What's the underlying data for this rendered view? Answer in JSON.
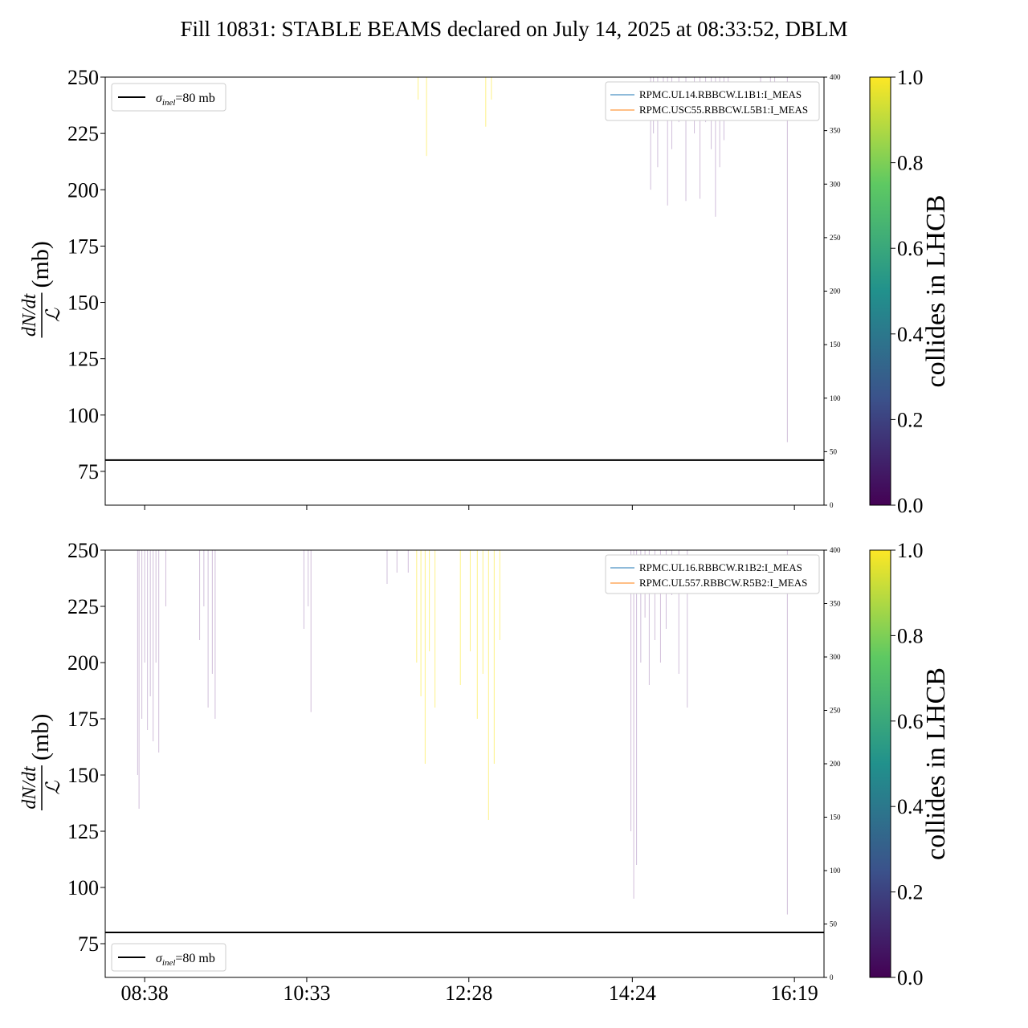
{
  "figure": {
    "title": "Fill 10831: STABLE BEAMS declared on July 14, 2025 at 08:33:52, DBLM"
  },
  "chart_data": [
    {
      "type": "line",
      "panel": "top",
      "ylabel_num": "dN/dt",
      "ylabel_den": "ℒ",
      "ylabel_unit": "(mb)",
      "ylim": [
        60,
        250
      ],
      "yticks": [
        75,
        100,
        125,
        150,
        175,
        200,
        225,
        250
      ],
      "y2lim": [
        0,
        400
      ],
      "y2ticks": [
        0,
        50,
        100,
        150,
        200,
        250,
        300,
        350,
        400
      ],
      "xticks": [
        "08:38",
        "10:33",
        "12:28",
        "14:24",
        "16:19"
      ],
      "xtick_minutes": [
        518,
        633,
        748,
        864,
        979
      ],
      "xlim_minutes": [
        490,
        1000
      ],
      "hline": {
        "y": 80,
        "label_sym": "σ",
        "label_sub": "inel",
        "label_rest": "=80 mb",
        "legend_loc": "upper left"
      },
      "series": [
        {
          "name": "RPMC.UL14.RBBCW.L1B1:I_MEAS",
          "color": "#1f77b4",
          "axis": "y2",
          "x_minutes": [
            513,
            978
          ],
          "values": [
            0,
            0
          ]
        },
        {
          "name": "RPMC.USC55.RBBCW.L5B1:I_MEAS",
          "color": "#ff7f0e",
          "axis": "y2",
          "x_minutes": [
            513,
            978
          ],
          "values": [
            0,
            0
          ]
        }
      ],
      "spikes": [
        {
          "t": 712,
          "ymin": 240,
          "c": 1.0
        },
        {
          "t": 718,
          "ymin": 215,
          "c": 1.0
        },
        {
          "t": 760,
          "ymin": 228,
          "c": 1.0
        },
        {
          "t": 764,
          "ymin": 240,
          "c": 1.0
        },
        {
          "t": 877,
          "ymin": 200,
          "c": 0.1
        },
        {
          "t": 879,
          "ymin": 225,
          "c": 0.1
        },
        {
          "t": 882,
          "ymin": 210,
          "c": 0.1
        },
        {
          "t": 886,
          "ymin": 235,
          "c": 0.1
        },
        {
          "t": 889,
          "ymin": 193,
          "c": 0.1
        },
        {
          "t": 892,
          "ymin": 218,
          "c": 0.1
        },
        {
          "t": 897,
          "ymin": 230,
          "c": 0.1
        },
        {
          "t": 902,
          "ymin": 195,
          "c": 0.1
        },
        {
          "t": 908,
          "ymin": 225,
          "c": 0.1
        },
        {
          "t": 912,
          "ymin": 196,
          "c": 0.1
        },
        {
          "t": 916,
          "ymin": 230,
          "c": 0.1
        },
        {
          "t": 920,
          "ymin": 218,
          "c": 0.1
        },
        {
          "t": 923,
          "ymin": 188,
          "c": 0.1
        },
        {
          "t": 926,
          "ymin": 210,
          "c": 0.1
        },
        {
          "t": 929,
          "ymin": 222,
          "c": 0.1
        },
        {
          "t": 932,
          "ymin": 233,
          "c": 0.1
        },
        {
          "t": 955,
          "ymin": 240,
          "c": 0.1
        },
        {
          "t": 962,
          "ymin": 235,
          "c": 0.1
        },
        {
          "t": 965,
          "ymin": 245,
          "c": 0.1
        },
        {
          "t": 974,
          "ymin": 88,
          "c": 0.1
        }
      ]
    },
    {
      "type": "line",
      "panel": "bottom",
      "ylabel_num": "dN/dt",
      "ylabel_den": "ℒ",
      "ylabel_unit": "(mb)",
      "ylim": [
        60,
        250
      ],
      "yticks": [
        75,
        100,
        125,
        150,
        175,
        200,
        225,
        250
      ],
      "y2lim": [
        0,
        400
      ],
      "y2ticks": [
        0,
        50,
        100,
        150,
        200,
        250,
        300,
        350,
        400
      ],
      "xticks": [
        "08:38",
        "10:33",
        "12:28",
        "14:24",
        "16:19"
      ],
      "xtick_minutes": [
        518,
        633,
        748,
        864,
        979
      ],
      "xlim_minutes": [
        490,
        1000
      ],
      "hline": {
        "y": 80,
        "label_sym": "σ",
        "label_sub": "inel",
        "label_rest": "=80 mb",
        "legend_loc": "lower left"
      },
      "series": [
        {
          "name": "RPMC.UL16.RBBCW.R1B2:I_MEAS",
          "color": "#1f77b4",
          "axis": "y2",
          "x_minutes": [
            513,
            978
          ],
          "values": [
            0,
            0
          ]
        },
        {
          "name": "RPMC.UL557.RBBCW.R5B2:I_MEAS",
          "color": "#ff7f0e",
          "axis": "y2",
          "x_minutes": [
            513,
            978
          ],
          "values": [
            0,
            0
          ]
        }
      ],
      "spikes": [
        {
          "t": 513,
          "ymin": 150,
          "c": 0.1
        },
        {
          "t": 514,
          "ymin": 135,
          "c": 0.1
        },
        {
          "t": 516,
          "ymin": 175,
          "c": 0.1
        },
        {
          "t": 518,
          "ymin": 200,
          "c": 0.1
        },
        {
          "t": 520,
          "ymin": 170,
          "c": 0.1
        },
        {
          "t": 522,
          "ymin": 185,
          "c": 0.1
        },
        {
          "t": 524,
          "ymin": 165,
          "c": 0.1
        },
        {
          "t": 526,
          "ymin": 200,
          "c": 0.1
        },
        {
          "t": 528,
          "ymin": 160,
          "c": 0.1
        },
        {
          "t": 533,
          "ymin": 225,
          "c": 0.1
        },
        {
          "t": 557,
          "ymin": 210,
          "c": 0.1
        },
        {
          "t": 560,
          "ymin": 225,
          "c": 0.1
        },
        {
          "t": 563,
          "ymin": 180,
          "c": 0.1
        },
        {
          "t": 566,
          "ymin": 195,
          "c": 0.1
        },
        {
          "t": 568,
          "ymin": 175,
          "c": 0.1
        },
        {
          "t": 631,
          "ymin": 215,
          "c": 0.1
        },
        {
          "t": 634,
          "ymin": 225,
          "c": 0.1
        },
        {
          "t": 636,
          "ymin": 178,
          "c": 0.1
        },
        {
          "t": 690,
          "ymin": 235,
          "c": 0.1
        },
        {
          "t": 697,
          "ymin": 240,
          "c": 0.1
        },
        {
          "t": 705,
          "ymin": 240,
          "c": 0.1
        },
        {
          "t": 711,
          "ymin": 200,
          "c": 1.0
        },
        {
          "t": 714,
          "ymin": 185,
          "c": 1.0
        },
        {
          "t": 717,
          "ymin": 155,
          "c": 1.0
        },
        {
          "t": 720,
          "ymin": 205,
          "c": 1.0
        },
        {
          "t": 724,
          "ymin": 180,
          "c": 1.0
        },
        {
          "t": 742,
          "ymin": 190,
          "c": 1.0
        },
        {
          "t": 749,
          "ymin": 205,
          "c": 1.0
        },
        {
          "t": 754,
          "ymin": 175,
          "c": 1.0
        },
        {
          "t": 758,
          "ymin": 195,
          "c": 1.0
        },
        {
          "t": 762,
          "ymin": 130,
          "c": 1.0
        },
        {
          "t": 766,
          "ymin": 155,
          "c": 1.0
        },
        {
          "t": 770,
          "ymin": 210,
          "c": 1.0
        },
        {
          "t": 863,
          "ymin": 125,
          "c": 0.1
        },
        {
          "t": 865,
          "ymin": 95,
          "c": 0.1
        },
        {
          "t": 867,
          "ymin": 110,
          "c": 0.1
        },
        {
          "t": 870,
          "ymin": 200,
          "c": 0.1
        },
        {
          "t": 873,
          "ymin": 220,
          "c": 0.1
        },
        {
          "t": 876,
          "ymin": 190,
          "c": 0.1
        },
        {
          "t": 880,
          "ymin": 210,
          "c": 0.1
        },
        {
          "t": 884,
          "ymin": 200,
          "c": 0.1
        },
        {
          "t": 888,
          "ymin": 215,
          "c": 0.1
        },
        {
          "t": 892,
          "ymin": 230,
          "c": 0.1
        },
        {
          "t": 897,
          "ymin": 195,
          "c": 0.1
        },
        {
          "t": 903,
          "ymin": 180,
          "c": 0.1
        },
        {
          "t": 974,
          "ymin": 88,
          "c": 0.1
        }
      ]
    }
  ],
  "colorbars": [
    {
      "label": "collides in LHCB",
      "ticks": [
        "0.0",
        "0.2",
        "0.4",
        "0.6",
        "0.8",
        "1.0"
      ],
      "colormap": [
        "#440154",
        "#3b528b",
        "#21918c",
        "#5ec962",
        "#fde725"
      ]
    },
    {
      "label": "collides in LHCB",
      "ticks": [
        "0.0",
        "0.2",
        "0.4",
        "0.6",
        "0.8",
        "1.0"
      ],
      "colormap": [
        "#440154",
        "#3b528b",
        "#21918c",
        "#5ec962",
        "#fde725"
      ]
    }
  ]
}
